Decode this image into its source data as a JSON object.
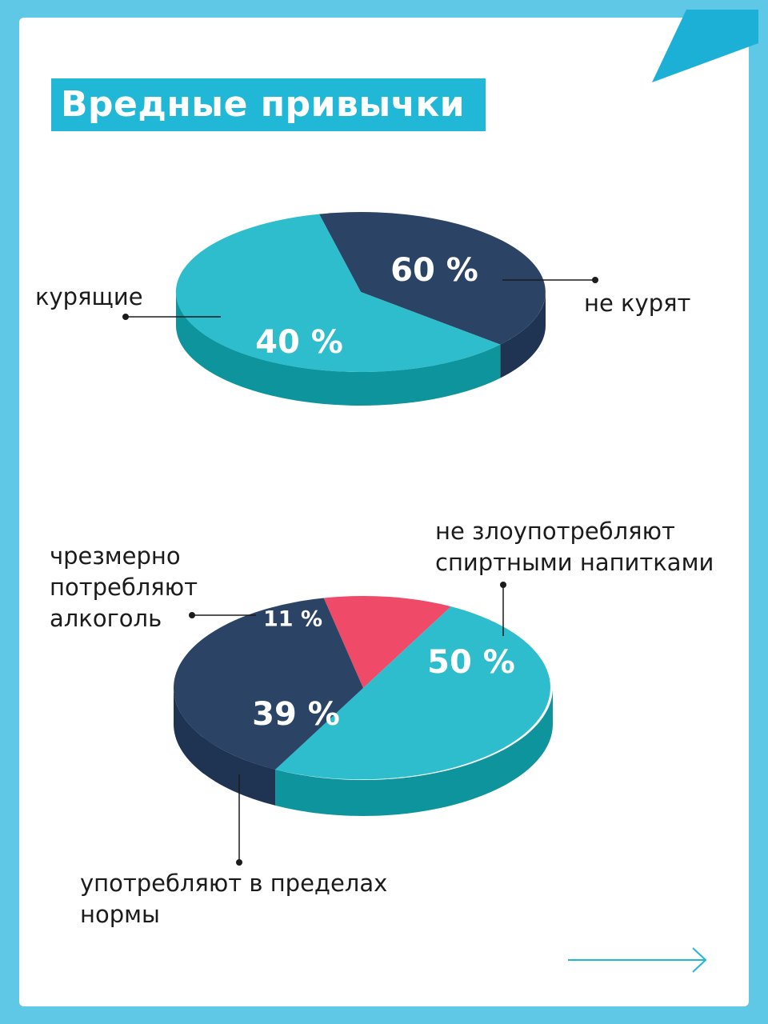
{
  "title": "Вредные привычки",
  "colors": {
    "frame": "#5ec8e6",
    "title_bg": "#21b8d8",
    "dark_top": "#2b4466",
    "dark_side": "#1f3453",
    "teal_top": "#2ebdcc",
    "teal_side": "#0e949c",
    "red_top": "#ef4b68",
    "label_text": "#1b1b1b"
  },
  "icons": {
    "corner": "corner-triangle-decoration",
    "next": "arrow-right-icon"
  },
  "chart_data": [
    {
      "type": "pie",
      "slices": [
        {
          "label": "курящие",
          "value": 40,
          "value_label": "40 %",
          "color": "#2b4466"
        },
        {
          "label": "не курят",
          "value": 60,
          "value_label": "60 %",
          "color": "#2ebdcc"
        }
      ]
    },
    {
      "type": "pie",
      "slices": [
        {
          "label": "чрезмерно потребляют алкоголь",
          "label_lines": [
            "чрезмерно",
            "потребляют",
            "алкоголь"
          ],
          "value": 11,
          "value_label": "11 %",
          "color": "#ef4b68"
        },
        {
          "label": "не злоупотребляют спиртными напитками",
          "label_lines": [
            "не злоупотребляют",
            "спиртными напитками"
          ],
          "value": 50,
          "value_label": "50 %",
          "color": "#2ebdcc"
        },
        {
          "label": "употребляют в пределах нормы",
          "label_lines": [
            "употребляют в пределах",
            "нормы"
          ],
          "value": 39,
          "value_label": "39 %",
          "color": "#2b4466"
        }
      ]
    }
  ]
}
